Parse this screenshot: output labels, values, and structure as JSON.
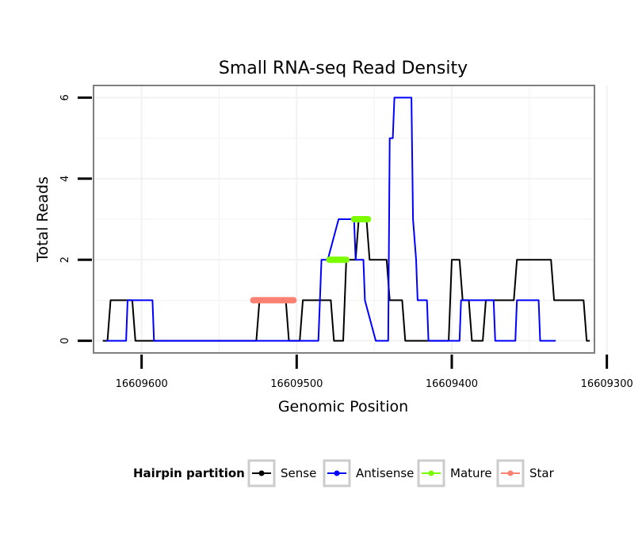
{
  "chart_data": {
    "type": "line",
    "title": "Small RNA-seq Read Density",
    "xlabel": "Genomic Position",
    "ylabel": "Total Reads",
    "x_reversed": true,
    "xlim": [
      16609631,
      16609308
    ],
    "ylim": [
      -0.3,
      6.3
    ],
    "x_ticks": [
      16609600,
      16609500,
      16609400,
      16609300
    ],
    "x_tick_labels": [
      "16609600",
      "16609500",
      "16609400",
      "16609300"
    ],
    "y_ticks": [
      0,
      2,
      4,
      6
    ],
    "y_tick_labels": [
      "0",
      "2",
      "4",
      "6"
    ],
    "grid": true,
    "legend": {
      "title": "Hairpin partition",
      "position": "bottom",
      "entries": [
        "Sense",
        "Antisense",
        "Mature",
        "Star"
      ]
    },
    "series": [
      {
        "name": "Sense",
        "color": "#000000",
        "x": [
          16609625,
          16609622,
          16609620,
          16609606,
          16609604,
          16609526,
          16609524,
          16609507,
          16609505,
          16609498,
          16609496,
          16609478,
          16609476,
          16609470,
          16609468,
          16609462,
          16609460,
          16609455,
          16609453,
          16609442,
          16609440,
          16609432,
          16609430,
          16609402,
          16609400,
          16609395,
          16609393,
          16609389,
          16609387,
          16609380,
          16609378,
          16609360,
          16609358,
          16609336,
          16609334,
          16609315,
          16609313,
          16609311
        ],
        "values": [
          0,
          0,
          1,
          1,
          0,
          0,
          1,
          1,
          0,
          0,
          1,
          1,
          0,
          0,
          2,
          2,
          3,
          3,
          2,
          2,
          1,
          1,
          0,
          0,
          2,
          2,
          1,
          1,
          0,
          0,
          1,
          1,
          2,
          2,
          1,
          1,
          0,
          0
        ]
      },
      {
        "name": "Antisense",
        "color": "#0000ff",
        "x": [
          16609623,
          16609610,
          16609609,
          16609593,
          16609592,
          16609486,
          16609484,
          16609481,
          16609480,
          16609473,
          16609472,
          16609463,
          16609462,
          16609457,
          16609456,
          16609449,
          16609448,
          16609441,
          16609440,
          16609438,
          16609437,
          16609426,
          16609425,
          16609423,
          16609422,
          16609416,
          16609415,
          16609395,
          16609394,
          16609373,
          16609372,
          16609359,
          16609358,
          16609344,
          16609343,
          16609333
        ],
        "values": [
          0,
          0,
          1,
          1,
          0,
          0,
          2,
          2,
          2,
          3,
          3,
          3,
          2,
          2,
          1,
          0,
          0,
          0,
          5,
          5,
          6,
          6,
          3,
          2,
          1,
          1,
          0,
          0,
          1,
          1,
          0,
          0,
          1,
          1,
          0,
          0
        ]
      }
    ],
    "segments": [
      {
        "name": "Mature",
        "color": "#7cfc00",
        "y": 2,
        "x_start": 16609479,
        "x_end": 16609468
      },
      {
        "name": "Mature",
        "color": "#7cfc00",
        "y": 3,
        "x_start": 16609463,
        "x_end": 16609454
      },
      {
        "name": "Star",
        "color": "#fa8072",
        "y": 1,
        "x_start": 16609528,
        "x_end": 16609502
      }
    ]
  },
  "colors": {
    "sense": "#000000",
    "antisense": "#0000ff",
    "mature": "#7cfc00",
    "star": "#fa8072",
    "panel_border": "#7f7f7f",
    "grid": "#f2f2f2",
    "legend_key_border": "#cccccc"
  }
}
